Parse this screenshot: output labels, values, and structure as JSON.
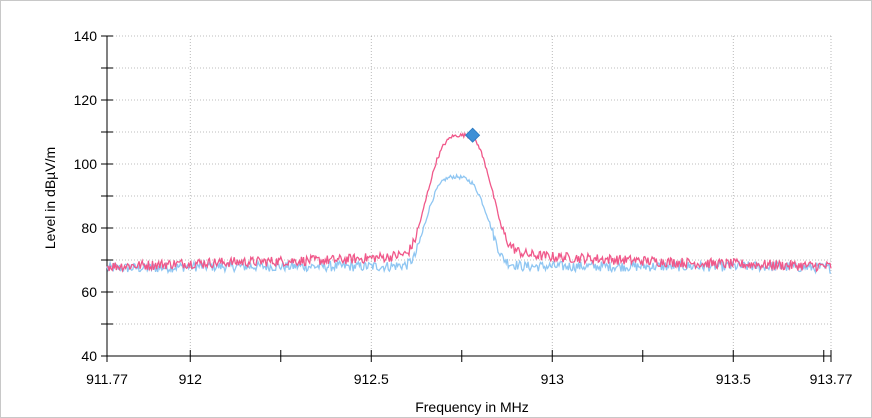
{
  "chart_data": {
    "type": "line",
    "xlabel": "Frequency in MHz",
    "ylabel": "Level in dBµV/m",
    "xlim": [
      911.77,
      913.77
    ],
    "ylim": [
      40,
      140
    ],
    "x_ticks": [
      911.77,
      912,
      912.5,
      913,
      913.5,
      913.77
    ],
    "x_tick_labels": [
      "911.77",
      "912",
      "912.5",
      "913",
      "913.5",
      "913.77"
    ],
    "y_ticks": [
      40,
      60,
      80,
      100,
      120,
      140
    ],
    "y_tick_labels": [
      "40",
      "60",
      "80",
      "100",
      "120",
      "140"
    ],
    "grid": true,
    "series": [
      {
        "color": "#f0588a",
        "x": [
          911.77,
          911.9,
          912.0,
          912.2,
          912.4,
          912.55,
          912.6,
          912.62,
          912.64,
          912.66,
          912.68,
          912.7,
          912.72,
          912.74,
          912.76,
          912.78,
          912.8,
          912.82,
          912.84,
          912.86,
          912.88,
          912.9,
          912.92,
          912.95,
          913.0,
          913.2,
          913.4,
          913.6,
          913.77
        ],
        "y": [
          68,
          68.5,
          69,
          69.5,
          70,
          71,
          72,
          76,
          84,
          93,
          101,
          106,
          108.5,
          109,
          109,
          108.5,
          105,
          98,
          89,
          80,
          75,
          73,
          72,
          71.5,
          71,
          70,
          69,
          68.5,
          68
        ]
      },
      {
        "color": "#8fc6f2",
        "x": [
          911.77,
          911.9,
          912.0,
          912.2,
          912.4,
          912.55,
          912.6,
          912.62,
          912.64,
          912.66,
          912.68,
          912.7,
          912.72,
          912.74,
          912.76,
          912.78,
          912.8,
          912.82,
          912.84,
          912.86,
          912.88,
          912.9,
          912.92,
          912.95,
          913.0,
          913.2,
          913.4,
          913.6,
          913.77
        ],
        "y": [
          67.5,
          67.5,
          68,
          68,
          68,
          68,
          68.5,
          71,
          78,
          86,
          92,
          95,
          96,
          96,
          95.5,
          94,
          90,
          84,
          77,
          71,
          69,
          68.5,
          68,
          68,
          68,
          68,
          68,
          68,
          67.5
        ]
      }
    ],
    "markers": [
      {
        "x": 912.78,
        "y": 109,
        "shape": "diamond",
        "color": "#3d8fd6"
      }
    ]
  }
}
